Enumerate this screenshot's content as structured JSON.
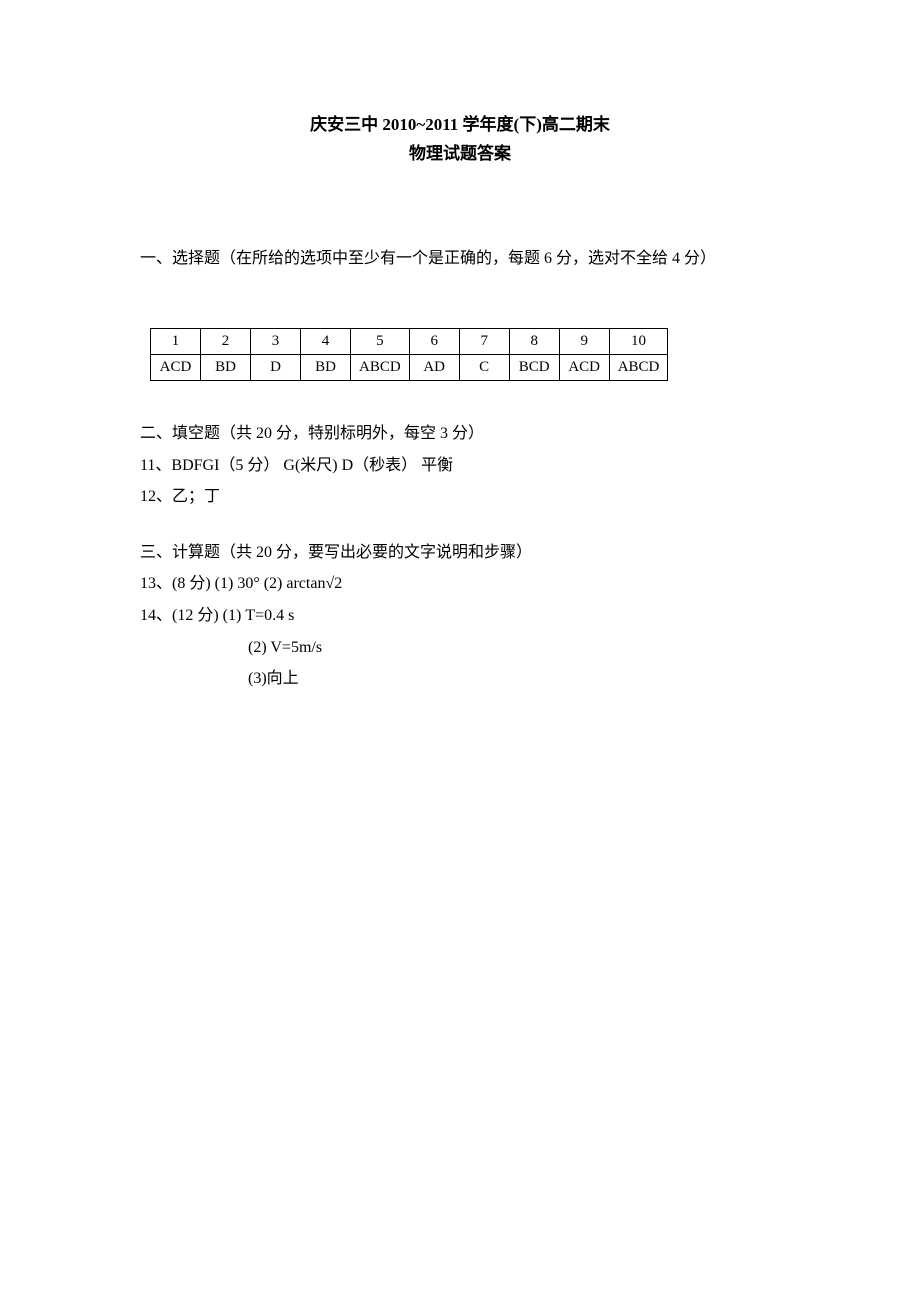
{
  "title": {
    "line1": "庆安三中 2010~2011 学年度(下)高二期末",
    "line2": "物理试题答案"
  },
  "section1": {
    "heading": "一、选择题（在所给的选项中至少有一个是正确的，每题 6 分，选对不全给 4 分）",
    "headers": [
      "1",
      "2",
      "3",
      "4",
      "5",
      "6",
      "7",
      "8",
      "9",
      "10"
    ],
    "answers": [
      "ACD",
      "BD",
      "D",
      "BD",
      "ABCD",
      "AD",
      "C",
      "BCD",
      "ACD",
      "ABCD"
    ]
  },
  "section2": {
    "heading": "二、填空题（共 20 分，特别标明外，每空 3 分）",
    "line11": "11、BDFGI（5 分）  G(米尺)    D（秒表）    平衡",
    "line12": "12、乙；丁"
  },
  "section3": {
    "heading": "三、计算题（共 20 分，要写出必要的文字说明和步骤）",
    "line13": "13、(8 分) (1) 30°  (2) arctan√2",
    "line14_1": "14、(12 分)   (1) T=0.4 s",
    "line14_2": "(2) V=5m/s",
    "line14_3": "(3)向上"
  },
  "colors": {
    "background": "#ffffff",
    "text": "#000000",
    "border": "#000000"
  }
}
